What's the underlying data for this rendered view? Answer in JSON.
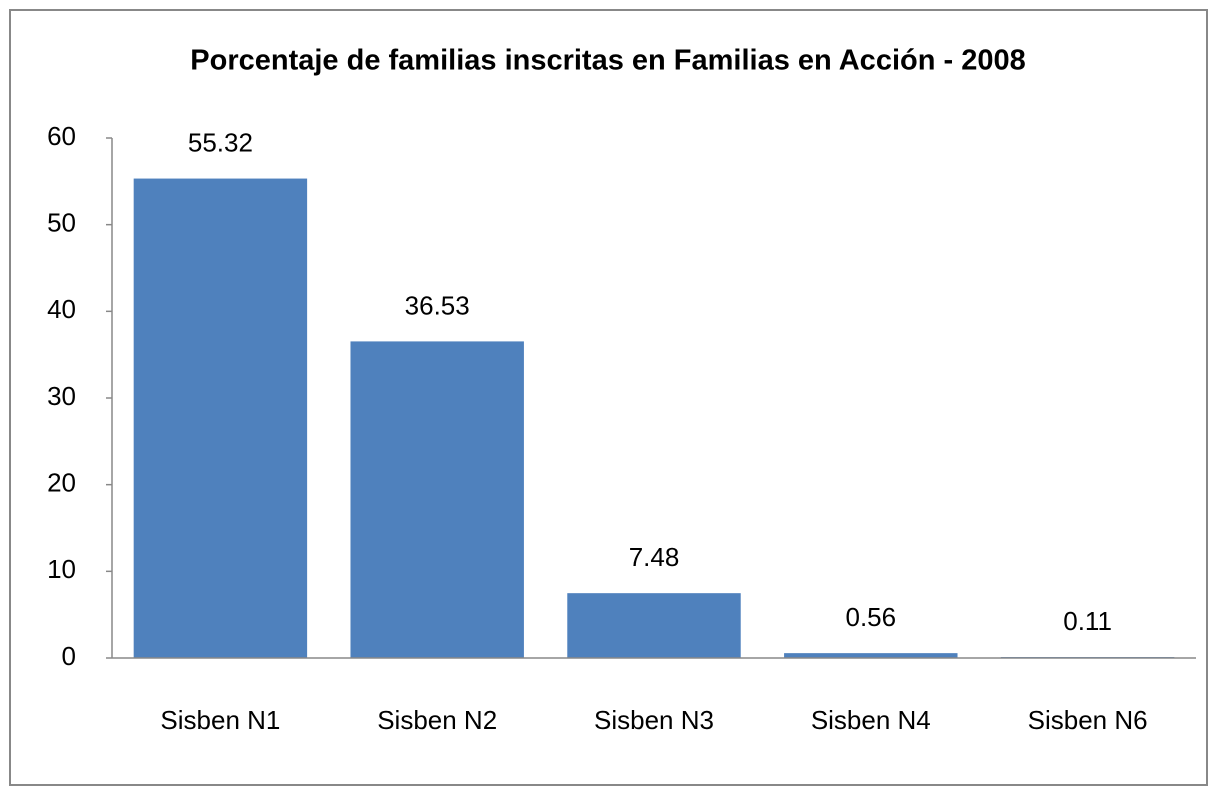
{
  "chart_data": {
    "type": "bar",
    "title": "Porcentaje de familias inscritas en Familias en Acción - 2008",
    "categories": [
      "Sisben N1",
      "Sisben N2",
      "Sisben N3",
      "Sisben N4",
      "Sisben N6"
    ],
    "values": [
      55.32,
      36.53,
      7.48,
      0.56,
      0.11
    ],
    "color": "#4f81bd",
    "ylim": [
      0,
      60
    ],
    "yticks": [
      0,
      10,
      20,
      30,
      40,
      50,
      60
    ],
    "grid": false
  }
}
